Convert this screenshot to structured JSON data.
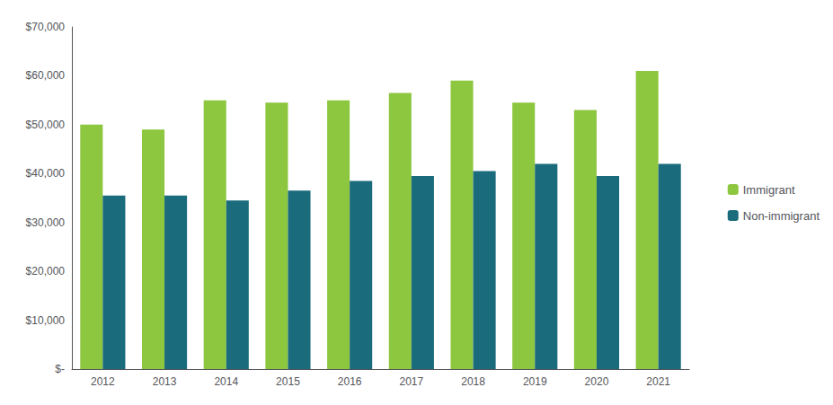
{
  "chart_data": {
    "type": "bar",
    "categories": [
      "2012",
      "2013",
      "2014",
      "2015",
      "2016",
      "2017",
      "2018",
      "2019",
      "2020",
      "2021"
    ],
    "series": [
      {
        "name": "Immigrant",
        "color": "#8dc63f",
        "values": [
          50000,
          49000,
          55000,
          54500,
          55000,
          56500,
          59000,
          54500,
          53000,
          61000
        ]
      },
      {
        "name": "Non-immigrant",
        "color": "#1a6b7c",
        "values": [
          35500,
          35500,
          34500,
          36500,
          38500,
          39500,
          40500,
          42000,
          39500,
          42000
        ]
      }
    ],
    "ylim": [
      0,
      70000
    ],
    "yticks": [
      {
        "value": 0,
        "label": "$-"
      },
      {
        "value": 10000,
        "label": "$10,000"
      },
      {
        "value": 20000,
        "label": "$20,000"
      },
      {
        "value": 30000,
        "label": "$30,000"
      },
      {
        "value": 40000,
        "label": "$40,000"
      },
      {
        "value": 50000,
        "label": "$50,000"
      },
      {
        "value": 60000,
        "label": "$60,000"
      },
      {
        "value": 70000,
        "label": "$70,000"
      }
    ],
    "grid": false,
    "legend": "right"
  }
}
